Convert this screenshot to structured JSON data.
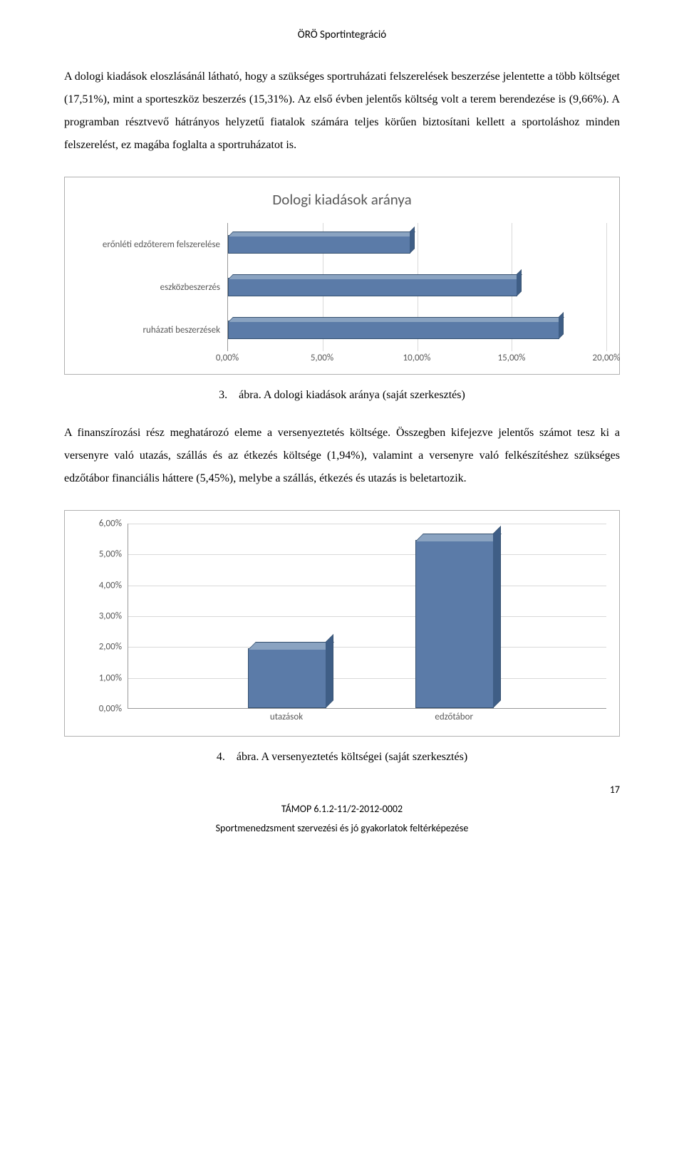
{
  "header": {
    "title": "ÖRÖ Sportintegráció"
  },
  "paragraphs": {
    "p1": "A dologi kiadások eloszlásánál látható, hogy a szükséges sportruházati felszerelések beszerzése jelentette a több költséget (17,51%), mint a sporteszköz beszerzés (15,31%). Az első évben jelentős költség volt a terem berendezése is (9,66%). A programban résztvevő hátrányos helyzetű fiatalok számára teljes körűen biztosítani kellett a sportoláshoz minden felszerelést, ez magába foglalta a sportruházatot is.",
    "p2": "A finanszírozási rész meghatározó eleme a versenyeztetés költsége. Összegben kifejezve jelentős számot tesz ki a versenyre való utazás, szállás és az étkezés költsége (1,94%), valamint a versenyre való felkészítéshez szükséges edzőtábor financiális háttere (5,45%), melybe a szállás, étkezés és utazás is beletartozik."
  },
  "chart1": {
    "type": "horizontal_bar_3d",
    "title": "Dologi kiadások aránya",
    "categories": [
      "erőnléti edzőterem felszerelése",
      "eszközbeszerzés",
      "ruházati beszerzések"
    ],
    "values": [
      9.66,
      15.31,
      17.51
    ],
    "xlim": [
      0,
      20
    ],
    "xtick_step": 5,
    "xtick_labels": [
      "0,00%",
      "5,00%",
      "10,00%",
      "15,00%",
      "20,00%"
    ],
    "bar_face_color": "#5b7ba8",
    "bar_top_color": "#8aa3c1",
    "bar_side_color": "#3f5e86",
    "bar_border_color": "#35506f",
    "grid_color": "#d9d9d9",
    "label_fontsize": 13,
    "title_fontsize": 21,
    "label_color": "#595959",
    "background_color": "#ffffff"
  },
  "caption1": "3. ábra. A dologi kiadások aránya (saját szerkesztés)",
  "chart2": {
    "type": "vertical_bar_3d",
    "categories": [
      "utazások",
      "edzőtábor"
    ],
    "values": [
      1.94,
      5.45
    ],
    "ylim": [
      0,
      6
    ],
    "ytick_step": 1,
    "ytick_labels": [
      "0,00%",
      "1,00%",
      "2,00%",
      "3,00%",
      "4,00%",
      "5,00%",
      "6,00%"
    ],
    "bar_face_color": "#5b7ba8",
    "bar_top_color": "#8aa3c1",
    "bar_side_color": "#3f5e86",
    "bar_border_color": "#35506f",
    "grid_color": "#d9d9d9",
    "label_fontsize": 13,
    "label_color": "#595959",
    "background_color": "#ffffff",
    "column_positions_pct": [
      25,
      60
    ]
  },
  "caption2": "4. ábra. A versenyeztetés költségei (saját szerkesztés)",
  "footer": {
    "page_number": "17",
    "line1": "TÁMOP 6.1.2-11/2-2012-0002",
    "line2": "Sportmenedzsment szervezési és jó gyakorlatok feltérképezése"
  }
}
